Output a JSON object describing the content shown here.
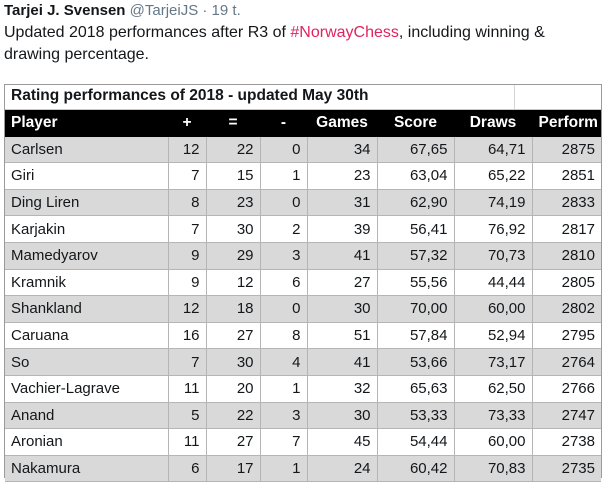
{
  "tweet": {
    "author_name": "Tarjei J. Svensen",
    "handle": "@TarjeiJS",
    "separator": "·",
    "time": "19 t.",
    "text_before": "Updated 2018 performances after R3 of ",
    "hashtag": "#NorwayChess",
    "text_after": ", including winning & drawing percentage."
  },
  "table": {
    "title": "Rating performances of 2018 - updated May 30th",
    "headers": [
      "Player",
      "+",
      "=",
      "-",
      "Games",
      "Score",
      "Draws",
      "Perform"
    ],
    "rows": [
      [
        "Carlsen",
        "12",
        "22",
        "0",
        "34",
        "67,65",
        "64,71",
        "2875"
      ],
      [
        "Giri",
        "7",
        "15",
        "1",
        "23",
        "63,04",
        "65,22",
        "2851"
      ],
      [
        "Ding Liren",
        "8",
        "23",
        "0",
        "31",
        "62,90",
        "74,19",
        "2833"
      ],
      [
        "Karjakin",
        "7",
        "30",
        "2",
        "39",
        "56,41",
        "76,92",
        "2817"
      ],
      [
        "Mamedyarov",
        "9",
        "29",
        "3",
        "41",
        "57,32",
        "70,73",
        "2810"
      ],
      [
        "Kramnik",
        "9",
        "12",
        "6",
        "27",
        "55,56",
        "44,44",
        "2805"
      ],
      [
        "Shankland",
        "12",
        "18",
        "0",
        "30",
        "70,00",
        "60,00",
        "2802"
      ],
      [
        "Caruana",
        "16",
        "27",
        "8",
        "51",
        "57,84",
        "52,94",
        "2795"
      ],
      [
        "So",
        "7",
        "30",
        "4",
        "41",
        "53,66",
        "73,17",
        "2764"
      ],
      [
        "Vachier-Lagrave",
        "11",
        "20",
        "1",
        "32",
        "65,63",
        "62,50",
        "2766"
      ],
      [
        "Anand",
        "5",
        "22",
        "3",
        "30",
        "53,33",
        "73,33",
        "2747"
      ],
      [
        "Aronian",
        "11",
        "27",
        "7",
        "45",
        "54,44",
        "60,00",
        "2738"
      ],
      [
        "Nakamura",
        "6",
        "17",
        "1",
        "24",
        "60,42",
        "70,83",
        "2735"
      ]
    ]
  }
}
